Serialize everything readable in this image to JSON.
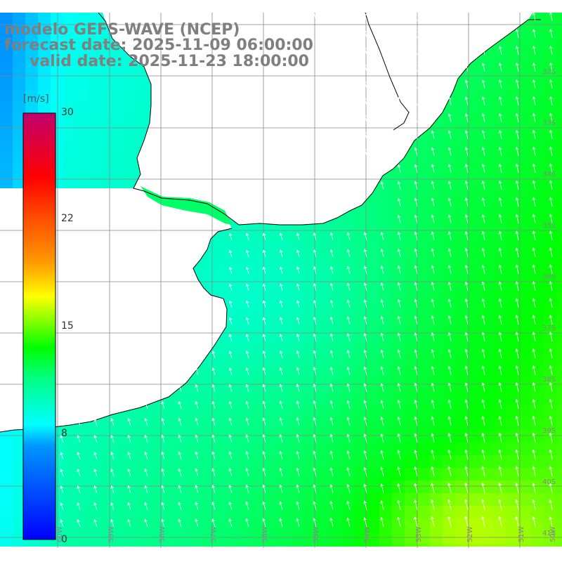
{
  "header": {
    "title": "modelo GEFS-WAVE (NCEP)",
    "forecast_date": "forecast date: 2025-11-09 06:00:00",
    "valid_date": "valid date: 2025-11-23 18:00:00"
  },
  "colorbar": {
    "unit": "[m/s]",
    "min": 0,
    "max": 30,
    "ticks": [
      {
        "value": 30,
        "label": "30"
      },
      {
        "value": 22,
        "label": "22"
      },
      {
        "value": 15,
        "label": "15"
      },
      {
        "value": 8,
        "label": "8"
      },
      {
        "value": 0,
        "label": "0"
      }
    ]
  },
  "map": {
    "variable": "wind speed and direction",
    "land_color": "#ffffff",
    "grid_color": "#888888",
    "coastline_color": "#000000",
    "arrow_color": "#ffffff",
    "lon_labels": [
      "60W",
      "59W",
      "58W",
      "57W",
      "56W",
      "55W",
      "54W",
      "53W",
      "52W",
      "51W",
      "50W"
    ],
    "lat_labels": [
      "32S",
      "33S",
      "34S",
      "35S",
      "36S",
      "37S",
      "38S",
      "39S",
      "40S",
      "41S"
    ]
  }
}
